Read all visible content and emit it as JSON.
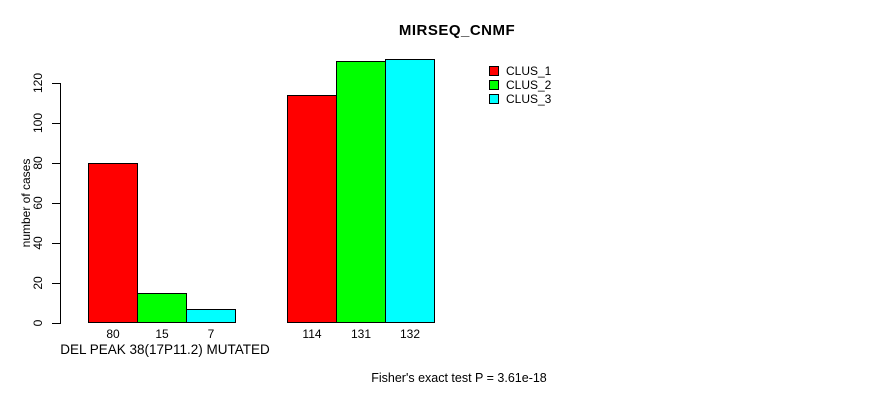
{
  "chart_data": {
    "type": "bar",
    "title": "MIRSEQ_CNMF",
    "ylabel": "number of cases",
    "xlabel": "DEL PEAK 38(17P11.2) MUTATED",
    "annotation": "Fisher's exact test P = 3.61e-18",
    "yticks": [
      0,
      20,
      40,
      60,
      80,
      100,
      120
    ],
    "ylim": [
      0,
      132
    ],
    "grid": false,
    "legend_position": "top-right",
    "legend": [
      "CLUS_1",
      "CLUS_2",
      "CLUS_3"
    ],
    "colors": [
      "#ff0000",
      "#00ff00",
      "#00ffff"
    ],
    "series": [
      {
        "name": "CLUS_1",
        "color": "#ff0000",
        "values": [
          80,
          114
        ]
      },
      {
        "name": "CLUS_2",
        "color": "#00ff00",
        "values": [
          15,
          131
        ]
      },
      {
        "name": "CLUS_3",
        "color": "#00ffff",
        "values": [
          7,
          132
        ]
      }
    ],
    "bar_value_labels": [
      [
        80,
        15,
        7
      ],
      [
        114,
        131,
        132
      ]
    ]
  }
}
